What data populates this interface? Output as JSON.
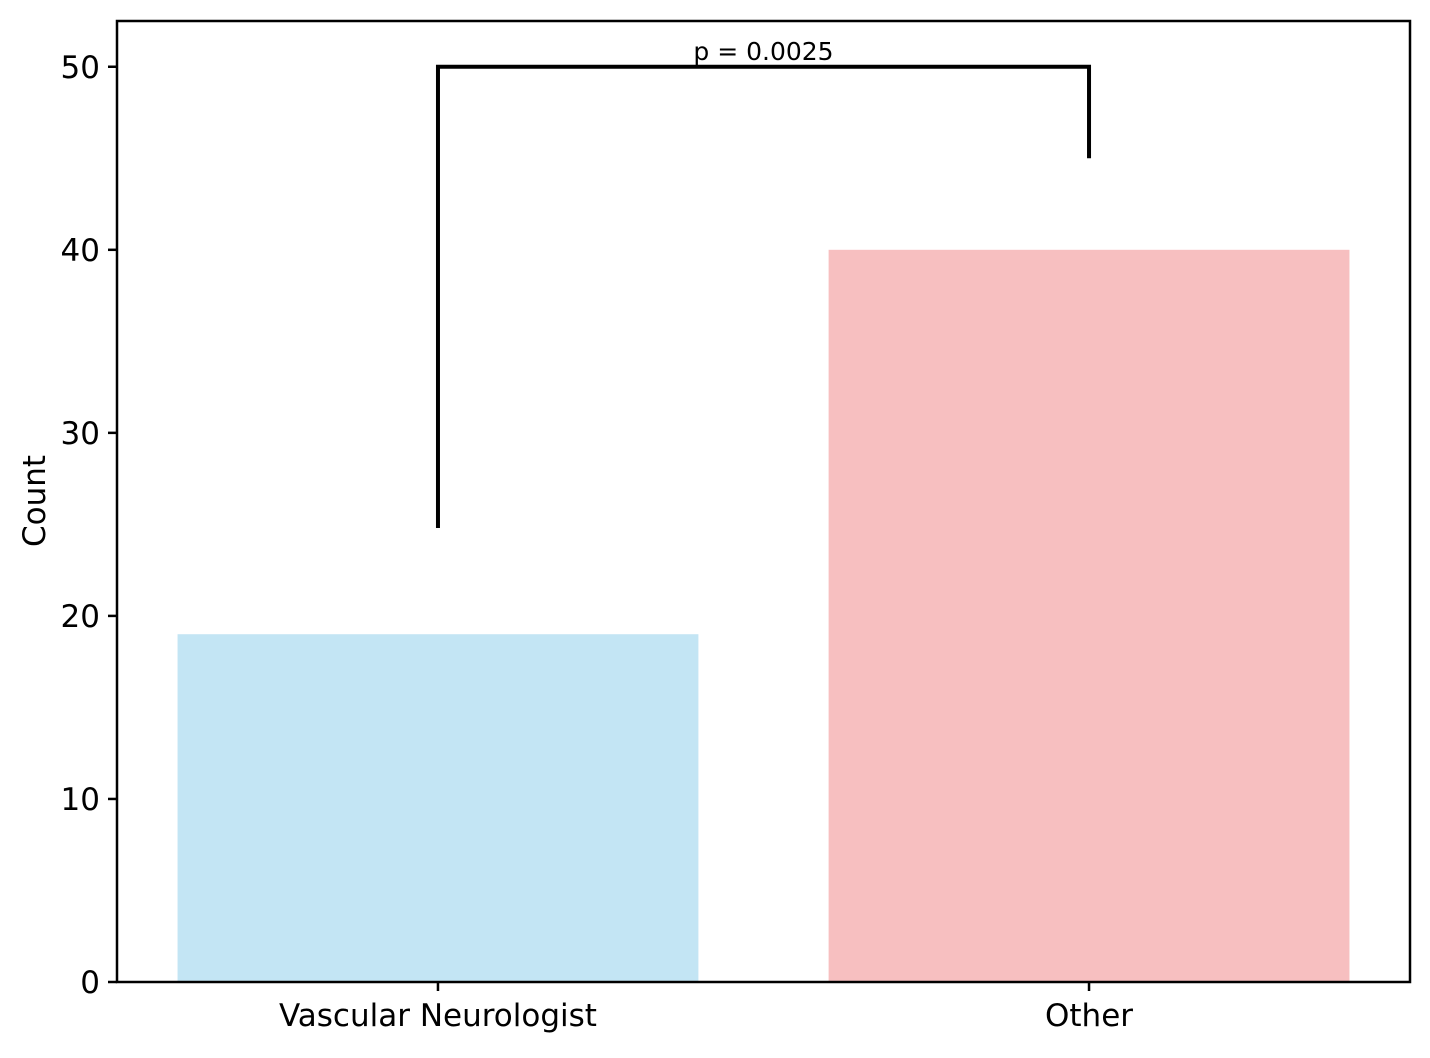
{
  "chart_data": {
    "type": "bar",
    "title": "",
    "xlabel": "",
    "ylabel": "Count",
    "categories": [
      "Vascular Neurologist",
      "Other"
    ],
    "values": [
      19,
      40
    ],
    "bar_colors": [
      "#c3e5f4",
      "#f7bfc0"
    ],
    "ylim": [
      0,
      52.5
    ],
    "yticks": [
      0,
      10,
      20,
      30,
      40,
      50
    ],
    "grid": false,
    "legend": null,
    "annotation": {
      "label": "p = 0.0025",
      "bracket": {
        "y_top": 50,
        "left_category_index": 0,
        "right_category_index": 1,
        "left_stem_bottom": 24.8,
        "right_stem_bottom": 45
      }
    }
  },
  "colors": {
    "background": "#ffffff",
    "axis": "#000000",
    "text": "#000000"
  }
}
